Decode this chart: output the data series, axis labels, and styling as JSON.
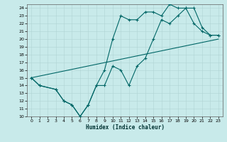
{
  "xlabel": "Humidex (Indice chaleur)",
  "bg_color": "#c8eaea",
  "grid_color": "#b0d4d4",
  "line_color": "#006666",
  "xlim": [
    -0.5,
    23.5
  ],
  "ylim": [
    10,
    24.5
  ],
  "xticks": [
    0,
    1,
    2,
    3,
    4,
    5,
    6,
    7,
    8,
    9,
    10,
    11,
    12,
    13,
    14,
    15,
    16,
    17,
    18,
    19,
    20,
    21,
    22,
    23
  ],
  "yticks": [
    10,
    11,
    12,
    13,
    14,
    15,
    16,
    17,
    18,
    19,
    20,
    21,
    22,
    23,
    24
  ],
  "line1_x": [
    0,
    1,
    3,
    4,
    5,
    6,
    7,
    8,
    9,
    10,
    11,
    12,
    13,
    14,
    15,
    16,
    17,
    18,
    19,
    20,
    21,
    22,
    23
  ],
  "line1_y": [
    15,
    14,
    13.5,
    12,
    11.5,
    10,
    11.5,
    14,
    14,
    16.5,
    16,
    14,
    16.5,
    17.5,
    20,
    22.5,
    22,
    23,
    24,
    24,
    21.5,
    20.5,
    20.5
  ],
  "line2_x": [
    0,
    1,
    3,
    4,
    5,
    6,
    7,
    8,
    9,
    10,
    11,
    12,
    13,
    14,
    15,
    16,
    17,
    18,
    19,
    20,
    21,
    22,
    23
  ],
  "line2_y": [
    15,
    14,
    13.5,
    12,
    11.5,
    10,
    11.5,
    14,
    16,
    20,
    23,
    22.5,
    22.5,
    23.5,
    23.5,
    23,
    24.5,
    24,
    24,
    22,
    21,
    20.5,
    20.5
  ],
  "line3_x": [
    0,
    23
  ],
  "line3_y": [
    15,
    20
  ]
}
